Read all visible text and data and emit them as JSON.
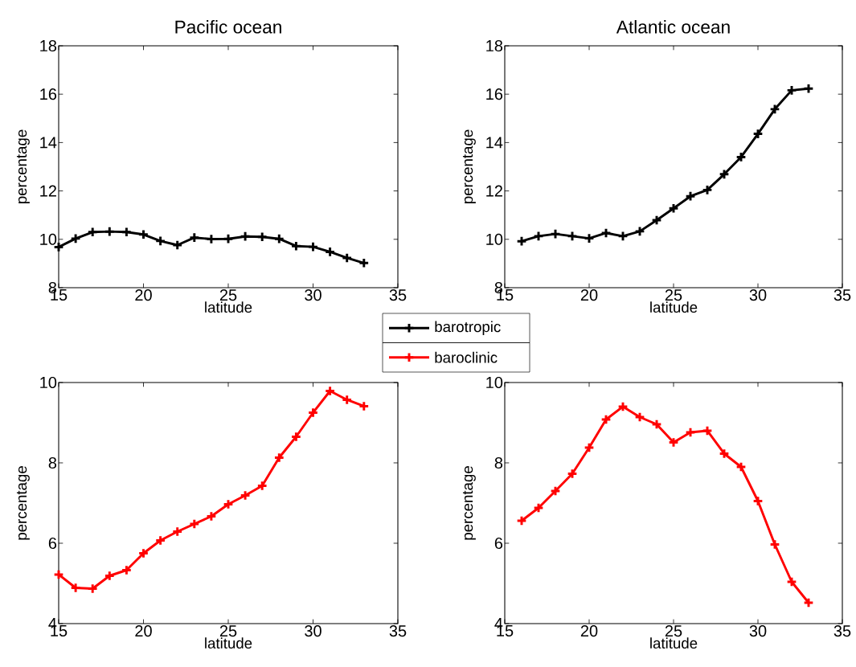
{
  "chart_data": [
    {
      "type": "line",
      "title": "Pacific ocean",
      "xlabel": "latitude",
      "ylabel": "percentage",
      "xlim": [
        15,
        35
      ],
      "ylim": [
        8,
        18
      ],
      "xticks": [
        15,
        20,
        25,
        30,
        35
      ],
      "yticks": [
        8,
        10,
        12,
        14,
        16,
        18
      ],
      "marker": "cross",
      "legend": "bottom right",
      "x": [
        15,
        16,
        17,
        18,
        19,
        20,
        21,
        22,
        23,
        24,
        25,
        26,
        27,
        28,
        29,
        30,
        31,
        32,
        33
      ],
      "series": [
        {
          "name": "barotropic",
          "color": "#000000",
          "values": [
            9.68,
            10.03,
            10.3,
            10.32,
            10.3,
            10.2,
            9.93,
            9.76,
            10.07,
            10.01,
            10.02,
            10.12,
            10.1,
            10.02,
            9.72,
            9.69,
            9.48,
            9.23,
            9.02
          ]
        }
      ]
    },
    {
      "type": "line",
      "title": "Atlantic ocean",
      "xlabel": "latitude",
      "ylabel": "percentage",
      "xlim": [
        15,
        35
      ],
      "ylim": [
        8,
        18
      ],
      "xticks": [
        15,
        20,
        25,
        30,
        35
      ],
      "yticks": [
        8,
        10,
        12,
        14,
        16,
        18
      ],
      "marker": "cross",
      "x": [
        16,
        17,
        18,
        19,
        20,
        21,
        22,
        23,
        24,
        25,
        26,
        27,
        28,
        29,
        30,
        31,
        32,
        33
      ],
      "series": [
        {
          "color": "#000000",
          "values": [
            9.92,
            10.13,
            10.22,
            10.13,
            10.04,
            10.26,
            10.13,
            10.33,
            10.79,
            11.28,
            11.78,
            12.04,
            12.69,
            13.4,
            14.36,
            15.38,
            16.16,
            16.23
          ]
        }
      ]
    },
    {
      "type": "line",
      "xlabel": "latitude",
      "ylabel": "percentage",
      "xlim": [
        15,
        35
      ],
      "ylim": [
        4,
        10
      ],
      "xticks": [
        15,
        20,
        25,
        30,
        35
      ],
      "yticks": [
        4,
        6,
        8,
        10
      ],
      "marker": "cross",
      "legend": "top right",
      "x": [
        15,
        16,
        17,
        18,
        19,
        20,
        21,
        22,
        23,
        24,
        25,
        26,
        27,
        28,
        29,
        30,
        31,
        32,
        33
      ],
      "series": [
        {
          "name": "baroclinic",
          "color": "#ff0000",
          "values": [
            5.22,
            4.89,
            4.87,
            5.19,
            5.33,
            5.75,
            6.07,
            6.29,
            6.48,
            6.67,
            6.97,
            7.19,
            7.43,
            8.13,
            8.65,
            9.25,
            9.79,
            9.57,
            9.41
          ]
        }
      ]
    },
    {
      "type": "line",
      "xlabel": "latitude",
      "ylabel": "percentage",
      "xlim": [
        15,
        35
      ],
      "ylim": [
        4,
        10
      ],
      "xticks": [
        15,
        20,
        25,
        30,
        35
      ],
      "yticks": [
        4,
        6,
        8,
        10
      ],
      "marker": "cross",
      "x": [
        16,
        17,
        18,
        19,
        20,
        21,
        22,
        23,
        24,
        25,
        26,
        27,
        28,
        29,
        30,
        31,
        32,
        33
      ],
      "series": [
        {
          "color": "#ff0000",
          "values": [
            6.56,
            6.88,
            7.3,
            7.73,
            8.38,
            9.08,
            9.4,
            9.14,
            8.96,
            8.51,
            8.76,
            8.8,
            8.23,
            7.9,
            7.05,
            5.97,
            5.04,
            4.52
          ]
        }
      ]
    }
  ]
}
